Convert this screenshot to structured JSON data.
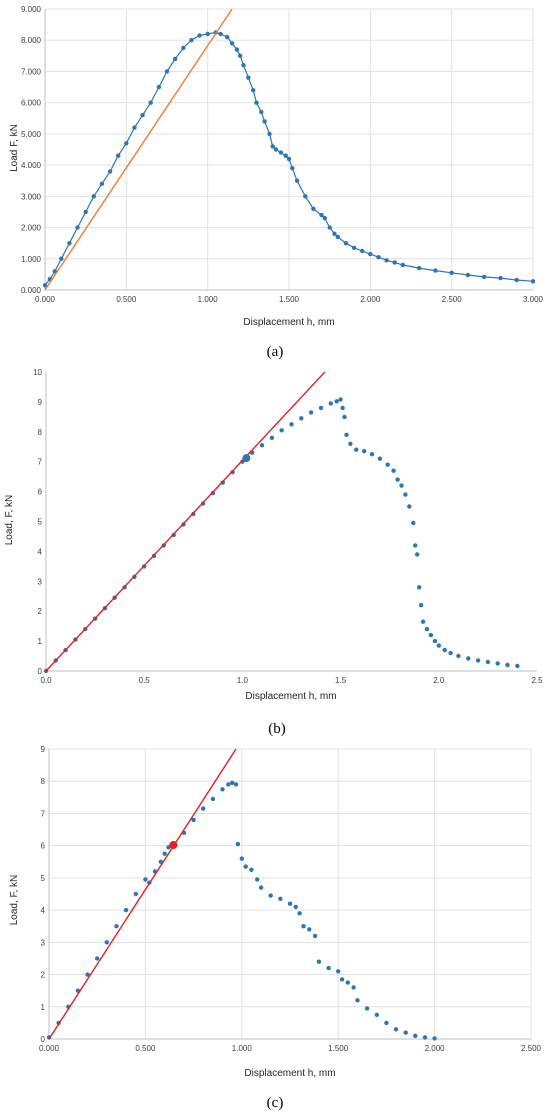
{
  "colors": {
    "points": "#2e75b6",
    "fit_a": "#ed7d31",
    "fit_bc": "#e02020",
    "marker_c": "#e02020",
    "grid": "#e3e3e3"
  },
  "chart_data": [
    {
      "type": "scatter",
      "caption": "(a)",
      "xlabel": "Displacement h, mm",
      "ylabel": "Load F, kN",
      "xlim": [
        0,
        3.0
      ],
      "ylim": [
        0,
        9.0
      ],
      "xticks": [
        "0.000",
        "0.500",
        "1.000",
        "1.500",
        "2.000",
        "2.500",
        "3.000"
      ],
      "yticks": [
        "0.000",
        "1.000",
        "2.000",
        "3.000",
        "4.000",
        "5.000",
        "6.000",
        "7.000",
        "8.000",
        "9.000"
      ],
      "grid": true,
      "series": [
        {
          "kind": "points-connected",
          "x": [
            0.0,
            0.03,
            0.06,
            0.1,
            0.15,
            0.2,
            0.25,
            0.3,
            0.35,
            0.4,
            0.45,
            0.5,
            0.55,
            0.6,
            0.65,
            0.7,
            0.75,
            0.8,
            0.85,
            0.9,
            0.95,
            1.0,
            1.05,
            1.08,
            1.12,
            1.15,
            1.18,
            1.2,
            1.22,
            1.25,
            1.28,
            1.3,
            1.33,
            1.35,
            1.38,
            1.4,
            1.42,
            1.45,
            1.48,
            1.5,
            1.52,
            1.55,
            1.6,
            1.65,
            1.7,
            1.72,
            1.75,
            1.78,
            1.8,
            1.85,
            1.9,
            1.95,
            2.0,
            2.05,
            2.1,
            2.15,
            2.2,
            2.3,
            2.4,
            2.5,
            2.6,
            2.7,
            2.8,
            2.9,
            3.0
          ],
          "y": [
            0.15,
            0.35,
            0.6,
            1.0,
            1.5,
            2.0,
            2.5,
            3.0,
            3.4,
            3.8,
            4.3,
            4.7,
            5.2,
            5.6,
            6.0,
            6.5,
            7.0,
            7.4,
            7.75,
            8.0,
            8.15,
            8.2,
            8.25,
            8.2,
            8.1,
            7.9,
            7.7,
            7.5,
            7.2,
            6.8,
            6.4,
            6.0,
            5.7,
            5.4,
            5.0,
            4.6,
            4.5,
            4.4,
            4.3,
            4.2,
            3.9,
            3.5,
            3.0,
            2.6,
            2.4,
            2.3,
            2.0,
            1.8,
            1.7,
            1.5,
            1.35,
            1.25,
            1.15,
            1.05,
            0.95,
            0.88,
            0.8,
            0.7,
            0.62,
            0.55,
            0.48,
            0.42,
            0.38,
            0.32,
            0.28
          ]
        },
        {
          "kind": "fit-line",
          "x": [
            0.0,
            1.15
          ],
          "y": [
            0.0,
            9.0
          ]
        }
      ]
    },
    {
      "type": "scatter",
      "caption": "(b)",
      "xlabel": "Displacement h, mm",
      "ylabel": "Load, F, kN",
      "xlim": [
        0,
        2.5
      ],
      "ylim": [
        0,
        10
      ],
      "xticks": [
        "0.0",
        "0.5",
        "1.0",
        "1.5",
        "2.0",
        "2.5"
      ],
      "yticks": [
        "0",
        "1",
        "2",
        "3",
        "4",
        "5",
        "6",
        "7",
        "8",
        "9",
        "10"
      ],
      "grid": false,
      "series": [
        {
          "kind": "points",
          "x": [
            0.0,
            0.05,
            0.1,
            0.15,
            0.2,
            0.25,
            0.3,
            0.35,
            0.4,
            0.45,
            0.5,
            0.55,
            0.6,
            0.65,
            0.7,
            0.75,
            0.8,
            0.85,
            0.9,
            0.95,
            1.0,
            1.05,
            1.1,
            1.15,
            1.2,
            1.25,
            1.3,
            1.35,
            1.4,
            1.45,
            1.48,
            1.5,
            1.51,
            1.52,
            1.53,
            1.55,
            1.58,
            1.62,
            1.66,
            1.7,
            1.74,
            1.77,
            1.79,
            1.81,
            1.83,
            1.85,
            1.87,
            1.88,
            1.89,
            1.9,
            1.91,
            1.92,
            1.94,
            1.96,
            1.98,
            2.0,
            2.03,
            2.06,
            2.1,
            2.15,
            2.2,
            2.25,
            2.3,
            2.35,
            2.4
          ],
          "y": [
            0.0,
            0.35,
            0.7,
            1.05,
            1.4,
            1.75,
            2.1,
            2.45,
            2.8,
            3.15,
            3.5,
            3.85,
            4.2,
            4.55,
            4.9,
            5.25,
            5.6,
            5.95,
            6.3,
            6.65,
            7.0,
            7.3,
            7.55,
            7.8,
            8.05,
            8.25,
            8.45,
            8.65,
            8.8,
            8.95,
            9.02,
            9.08,
            8.8,
            8.5,
            7.9,
            7.6,
            7.4,
            7.35,
            7.25,
            7.1,
            6.9,
            6.7,
            6.4,
            6.2,
            5.9,
            5.5,
            4.95,
            4.2,
            3.9,
            2.8,
            2.2,
            1.65,
            1.4,
            1.2,
            1.0,
            0.85,
            0.7,
            0.6,
            0.5,
            0.42,
            0.35,
            0.3,
            0.25,
            0.2,
            0.17
          ]
        },
        {
          "kind": "fit-line",
          "x": [
            0.0,
            1.42
          ],
          "y": [
            0.0,
            10.0
          ]
        },
        {
          "kind": "marker",
          "x": [
            1.02
          ],
          "y": [
            7.12
          ]
        }
      ]
    },
    {
      "type": "scatter",
      "caption": "(c)",
      "xlabel": "Displacement h, mm",
      "ylabel": "Load, F, kN",
      "xlim": [
        0,
        2.5
      ],
      "ylim": [
        0,
        9
      ],
      "xticks": [
        "0.000",
        "0.500",
        "1.000",
        "1.500",
        "2.000",
        "2.500"
      ],
      "yticks": [
        "0",
        "1",
        "2",
        "3",
        "4",
        "5",
        "6",
        "7",
        "8",
        "9"
      ],
      "grid": true,
      "series": [
        {
          "kind": "points",
          "x": [
            0.0,
            0.05,
            0.1,
            0.15,
            0.2,
            0.25,
            0.3,
            0.35,
            0.4,
            0.45,
            0.5,
            0.52,
            0.55,
            0.58,
            0.6,
            0.62,
            0.65,
            0.7,
            0.75,
            0.8,
            0.85,
            0.9,
            0.93,
            0.95,
            0.97,
            0.98,
            1.0,
            1.02,
            1.05,
            1.08,
            1.1,
            1.15,
            1.2,
            1.25,
            1.28,
            1.3,
            1.32,
            1.35,
            1.38,
            1.4,
            1.45,
            1.5,
            1.52,
            1.55,
            1.58,
            1.6,
            1.65,
            1.7,
            1.75,
            1.8,
            1.85,
            1.9,
            1.95,
            2.0
          ],
          "y": [
            0.05,
            0.5,
            1.0,
            1.5,
            2.0,
            2.5,
            3.0,
            3.5,
            4.0,
            4.5,
            4.95,
            4.85,
            5.2,
            5.5,
            5.75,
            5.95,
            6.05,
            6.4,
            6.8,
            7.15,
            7.45,
            7.75,
            7.9,
            7.95,
            7.9,
            6.05,
            5.6,
            5.35,
            5.25,
            4.95,
            4.7,
            4.45,
            4.35,
            4.2,
            4.1,
            3.9,
            3.5,
            3.4,
            3.2,
            2.4,
            2.2,
            2.1,
            1.85,
            1.75,
            1.6,
            1.2,
            0.95,
            0.75,
            0.5,
            0.3,
            0.2,
            0.1,
            0.05,
            0.02
          ]
        },
        {
          "kind": "fit-line",
          "x": [
            0.0,
            0.97
          ],
          "y": [
            0.0,
            9.0
          ]
        },
        {
          "kind": "marker",
          "x": [
            0.645
          ],
          "y": [
            6.02
          ]
        }
      ]
    }
  ]
}
